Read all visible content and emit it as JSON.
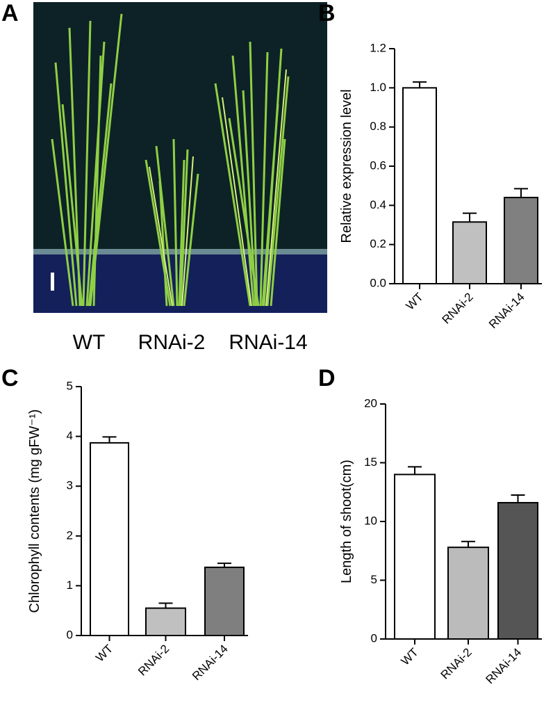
{
  "image_panel": {
    "panel": "A",
    "labels": [
      "WT",
      "RNAi-2",
      "RNAi-14"
    ]
  },
  "chart_data": [
    {
      "type": "bar",
      "panel": "B",
      "y_label": "Relative expression level",
      "categories": [
        "WT",
        "RNAi-2",
        "RNAi-14"
      ],
      "values": [
        1.0,
        0.315,
        0.44
      ],
      "errors": [
        0.03,
        0.045,
        0.045
      ],
      "colors": [
        "#ffffff",
        "#c0c0c0",
        "#808080"
      ],
      "ylim": [
        0,
        1.2
      ],
      "yticks": [
        {
          "value": 0,
          "label": "0.0"
        },
        0.2,
        0.4,
        0.6,
        0.8,
        {
          "value": 1,
          "label": "1.0"
        },
        1.2
      ]
    },
    {
      "type": "bar",
      "panel": "C",
      "y_label": "Chlorophyll contents (mg gFW⁻¹)",
      "categories": [
        "WT",
        "RNAi-2",
        "RNAi-14"
      ],
      "values": [
        3.87,
        0.55,
        1.37
      ],
      "errors": [
        0.12,
        0.1,
        0.08
      ],
      "colors": [
        "#ffffff",
        "#c0c0c0",
        "#7f7f7f"
      ],
      "ylim": [
        0,
        5
      ],
      "yticks": [
        0,
        1,
        2,
        3,
        4,
        5
      ]
    },
    {
      "type": "bar",
      "panel": "D",
      "y_label": "Length of shoot(cm)",
      "categories": [
        "WT",
        "RNAi-2",
        "RNAi-14"
      ],
      "values": [
        14.0,
        7.8,
        11.6
      ],
      "errors": [
        0.65,
        0.5,
        0.65
      ],
      "colors": [
        "#ffffff",
        "#bbbbbb",
        "#555555"
      ],
      "ylim": [
        0,
        20
      ],
      "yticks": [
        0,
        5,
        10,
        15,
        20
      ]
    }
  ]
}
